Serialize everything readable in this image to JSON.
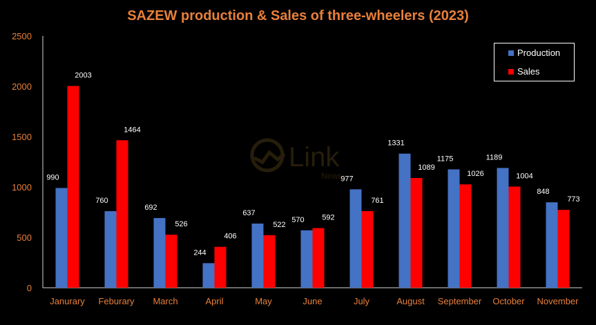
{
  "chart_data": {
    "type": "bar",
    "title": "SAZEW production & Sales of three-wheelers (2023)",
    "categories": [
      "Janurary",
      "Feburary",
      "March",
      "April",
      "May",
      "June",
      "July",
      "August",
      "September",
      "October",
      "November"
    ],
    "series": [
      {
        "name": "Production",
        "color": "#4472C4",
        "values": [
          990,
          760,
          692,
          244,
          637,
          570,
          977,
          1331,
          1175,
          1189,
          848
        ]
      },
      {
        "name": "Sales",
        "color": "#FF0000",
        "values": [
          2003,
          1464,
          526,
          406,
          522,
          592,
          761,
          1089,
          1026,
          1004,
          773
        ]
      }
    ],
    "ylim": [
      0,
      2500
    ],
    "yticks": [
      "0",
      "500",
      "1000",
      "1500",
      "2000",
      "2500"
    ],
    "grid": false,
    "legend_position": "top-right",
    "title_color": "#E9803A",
    "tick_color": "#E9803A",
    "background": "#000000"
  },
  "watermark": {
    "brand": "Link",
    "sub": "News"
  }
}
